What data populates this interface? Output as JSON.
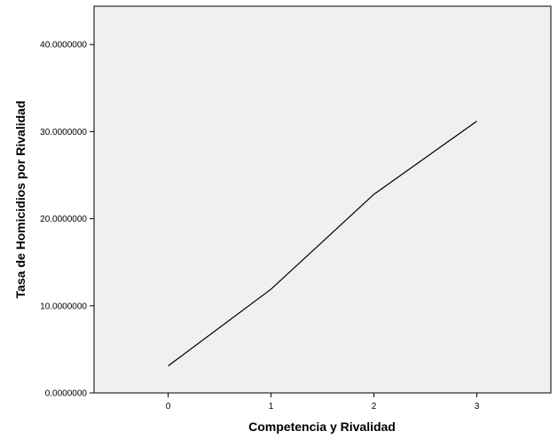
{
  "chart_data": {
    "type": "line",
    "xlabel": "Competencia y Rivalidad",
    "ylabel": "Tasa de Homicidios por Rivalidad",
    "x": [
      0,
      1,
      2,
      3
    ],
    "x_tick_labels": [
      "0",
      "1",
      "2",
      "3"
    ],
    "xlim": [
      -0.72,
      3.72
    ],
    "y_ticks": [
      0,
      10,
      20,
      30,
      40
    ],
    "y_tick_labels": [
      "0.0000000",
      "10.0000000",
      "20.0000000",
      "30.0000000",
      "40.0000000"
    ],
    "ylim": [
      0,
      44.4
    ],
    "series": [
      {
        "values": [
          3.1,
          11.9,
          22.8,
          31.2
        ]
      }
    ],
    "grid": false,
    "plot_background": "#f0f0f0",
    "line_color": "#000000"
  }
}
